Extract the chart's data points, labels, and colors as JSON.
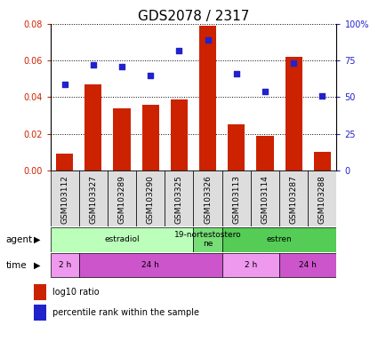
{
  "title": "GDS2078 / 2317",
  "samples": [
    "GSM103112",
    "GSM103327",
    "GSM103289",
    "GSM103290",
    "GSM103325",
    "GSM103326",
    "GSM103113",
    "GSM103114",
    "GSM103287",
    "GSM103288"
  ],
  "log10_ratio": [
    0.009,
    0.047,
    0.034,
    0.036,
    0.039,
    0.079,
    0.025,
    0.019,
    0.062,
    0.01
  ],
  "percentile_rank": [
    59,
    72,
    71,
    65,
    82,
    89,
    66,
    54,
    73,
    51
  ],
  "bar_color": "#cc2200",
  "dot_color": "#2222cc",
  "left_ylim": [
    0,
    0.08
  ],
  "right_ylim": [
    0,
    100
  ],
  "left_yticks": [
    0,
    0.02,
    0.04,
    0.06,
    0.08
  ],
  "right_yticks": [
    0,
    25,
    50,
    75,
    100
  ],
  "right_yticklabels": [
    "0",
    "25",
    "50",
    "75",
    "100%"
  ],
  "agent_labels": [
    {
      "text": "estradiol",
      "start": 0,
      "end": 5,
      "color": "#bbffbb"
    },
    {
      "text": "19-nortestostero\nne",
      "start": 5,
      "end": 6,
      "color": "#77dd77"
    },
    {
      "text": "estren",
      "start": 6,
      "end": 10,
      "color": "#55cc55"
    }
  ],
  "time_labels": [
    {
      "text": "2 h",
      "start": 0,
      "end": 1,
      "color": "#ee99ee"
    },
    {
      "text": "24 h",
      "start": 1,
      "end": 6,
      "color": "#cc55cc"
    },
    {
      "text": "2 h",
      "start": 6,
      "end": 8,
      "color": "#ee99ee"
    },
    {
      "text": "24 h",
      "start": 8,
      "end": 10,
      "color": "#cc55cc"
    }
  ],
  "legend_bar_label": "log10 ratio",
  "legend_dot_label": "percentile rank within the sample",
  "title_fontsize": 11,
  "tick_fontsize": 7,
  "sample_fontsize": 6.5
}
